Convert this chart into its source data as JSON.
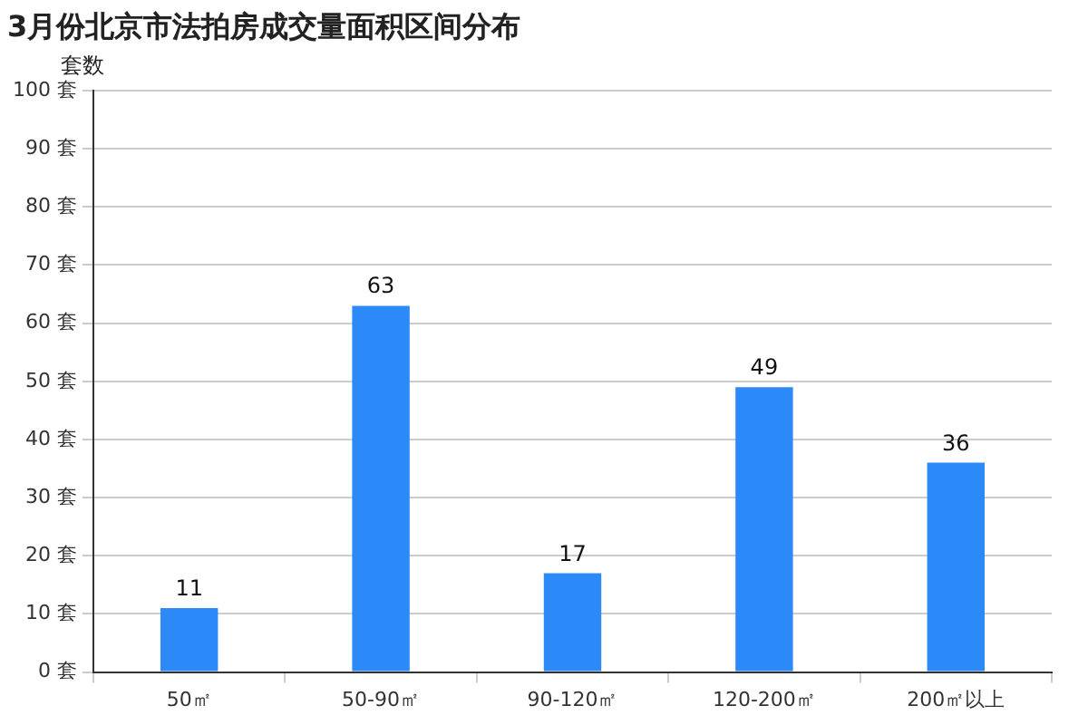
{
  "chart_data": {
    "type": "bar",
    "title": "3月份北京市法拍房成交量面积区间分布",
    "ylabel": "套数",
    "categories": [
      "50㎡",
      "50-90㎡",
      "90-120㎡",
      "120-200㎡",
      "200㎡以上"
    ],
    "values": [
      11,
      63,
      17,
      49,
      36
    ],
    "color": "#2b8af7",
    "ylim": [
      0,
      100
    ],
    "yticks": [
      {
        "value": 0,
        "label": "0 套"
      },
      {
        "value": 10,
        "label": "10 套"
      },
      {
        "value": 20,
        "label": "20 套"
      },
      {
        "value": 30,
        "label": "30 套"
      },
      {
        "value": 40,
        "label": "40 套"
      },
      {
        "value": 50,
        "label": "50 套"
      },
      {
        "value": 60,
        "label": "60 套"
      },
      {
        "value": 70,
        "label": "70 套"
      },
      {
        "value": 80,
        "label": "80 套"
      },
      {
        "value": 90,
        "label": "90 套"
      },
      {
        "value": 100,
        "label": "100 套"
      }
    ],
    "grid": "y",
    "data_labels": true,
    "legend": false
  }
}
